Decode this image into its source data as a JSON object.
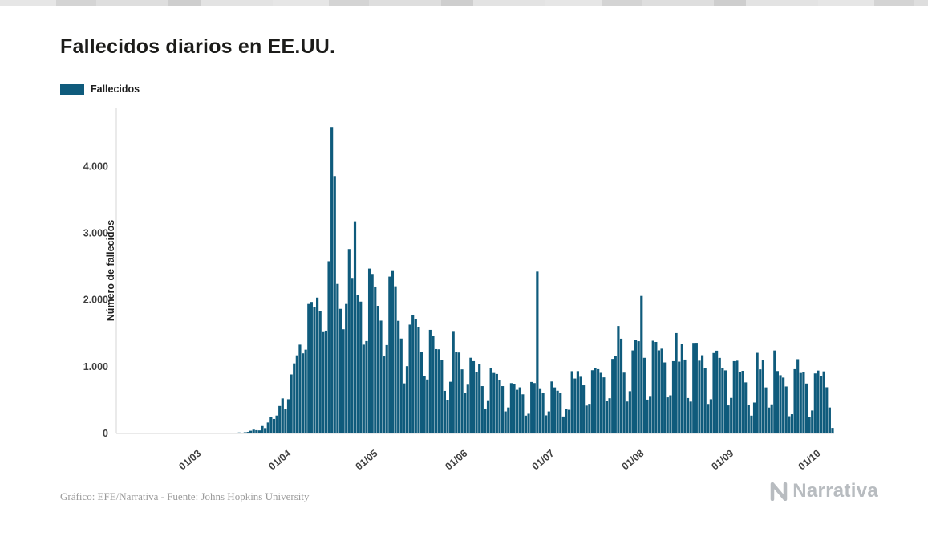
{
  "page": {
    "title": "Fallecidos diarios en EE.UU.",
    "credit": "Gráfico: EFE/Narrativa - Fuente: Johns Hopkins University",
    "brand": "Narrativa"
  },
  "legend": {
    "label": "Fallecidos",
    "color": "#0f5b7c"
  },
  "chart_data": {
    "type": "bar",
    "title": "Fallecidos diarios en EE.UU.",
    "series_name": "Fallecidos",
    "ylabel": "Número de fallecidos",
    "xlabel": "",
    "bar_color": "#0f5b7c",
    "grid": false,
    "legend_position": "top-left",
    "ylim": [
      0,
      4750
    ],
    "y_ticks": [
      0,
      1000,
      2000,
      3000,
      4000
    ],
    "y_tick_labels": [
      "0",
      "1.000",
      "2.000",
      "3.000",
      "4.000"
    ],
    "x_tick_labels": [
      "01/03",
      "01/04",
      "01/05",
      "01/06",
      "01/07",
      "01/08",
      "01/09",
      "01/10"
    ],
    "x_tick_indices": [
      29,
      60,
      90,
      121,
      151,
      182,
      213,
      243
    ],
    "x_start": "01/02/2020",
    "x_unit": "day",
    "values": [
      0,
      0,
      0,
      0,
      0,
      0,
      0,
      0,
      0,
      0,
      0,
      0,
      0,
      0,
      0,
      0,
      0,
      0,
      0,
      0,
      0,
      0,
      0,
      0,
      0,
      0,
      1,
      1,
      1,
      1,
      2,
      6,
      3,
      3,
      3,
      4,
      3,
      4,
      4,
      6,
      8,
      10,
      15,
      11,
      18,
      23,
      41,
      57,
      49,
      46,
      111,
      80,
      164,
      247,
      217,
      268,
      411,
      525,
      363,
      512,
      884,
      1050,
      1170,
      1330,
      1200,
      1255,
      1940,
      1970,
      1900,
      2035,
      1830,
      1530,
      1540,
      2580,
      4591,
      3857,
      2240,
      1867,
      1561,
      1940,
      2763,
      2330,
      3179,
      2070,
      1975,
      1330,
      1384,
      2470,
      2390,
      2201,
      1912,
      1690,
      1154,
      1324,
      2350,
      2445,
      2205,
      1687,
      1422,
      750,
      1008,
      1630,
      1772,
      1715,
      1595,
      1218,
      865,
      808,
      1552,
      1461,
      1263,
      1260,
      1104,
      638,
      505,
      774,
      1535,
      1223,
      1212,
      960,
      605,
      730,
      1134,
      1083,
      921,
      1035,
      709,
      373,
      497,
      979,
      906,
      891,
      802,
      709,
      330,
      389,
      754,
      738,
      654,
      691,
      586,
      267,
      295,
      771,
      755,
      2425,
      665,
      603,
      271,
      330,
      778,
      690,
      640,
      603,
      254,
      370,
      354,
      933,
      823,
      934,
      849,
      721,
      417,
      443,
      947,
      978,
      963,
      908,
      840,
      486,
      527,
      1117,
      1160,
      1610,
      1420,
      911,
      478,
      633,
      1244,
      1403,
      1382,
      2060,
      1133,
      506,
      561,
      1389,
      1371,
      1245,
      1270,
      1064,
      540,
      571,
      1083,
      1504,
      1076,
      1336,
      1107,
      530,
      477,
      1357,
      1358,
      1090,
      1172,
      981,
      442,
      512,
      1205,
      1240,
      1132,
      983,
      945,
      420,
      532,
      1083,
      1090,
      920,
      938,
      765,
      423,
      267,
      463,
      1208,
      960,
      1094,
      690,
      388,
      436,
      1243,
      935,
      873,
      837,
      704,
      258,
      288,
      963,
      1113,
      906,
      916,
      748,
      247,
      344,
      899,
      942,
      856,
      930,
      692,
      389,
      83
    ]
  }
}
